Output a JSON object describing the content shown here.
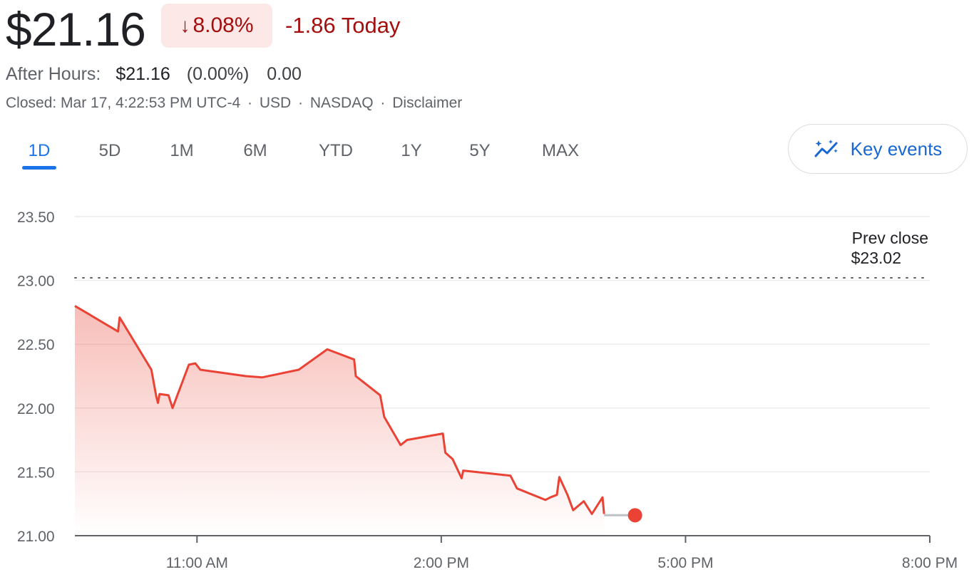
{
  "quote": {
    "price": "$21.16",
    "change_percent": "8.08%",
    "change_today": "-1.86 Today",
    "after_hours_label": "After Hours:",
    "after_hours_price": "$21.16",
    "after_hours_percent": "(0.00%)",
    "after_hours_change": "0.00",
    "status": "Closed: Mar 17, 4:22:53 PM UTC-4",
    "currency": "USD",
    "exchange": "NASDAQ",
    "disclaimer": "Disclaimer",
    "meta_separator": "·"
  },
  "tabs": [
    {
      "label": "1D",
      "active": true
    },
    {
      "label": "5D",
      "active": false
    },
    {
      "label": "1M",
      "active": false
    },
    {
      "label": "6M",
      "active": false
    },
    {
      "label": "YTD",
      "active": false
    },
    {
      "label": "1Y",
      "active": false
    },
    {
      "label": "5Y",
      "active": false
    },
    {
      "label": "MAX",
      "active": false
    }
  ],
  "key_events_label": "Key events",
  "colors": {
    "down": "#a50e0e",
    "line": "#ea4335",
    "accent": "#1a73e8",
    "badge_bg": "#fce8e6"
  },
  "chart_data": {
    "type": "line",
    "xlabel": "",
    "ylabel": "",
    "ylim": [
      21.0,
      23.5
    ],
    "y_ticks": [
      {
        "value": 23.5,
        "label": "23.50"
      },
      {
        "value": 23.0,
        "label": "23.00"
      },
      {
        "value": 22.5,
        "label": "22.50"
      },
      {
        "value": 22.0,
        "label": "22.00"
      },
      {
        "value": 21.5,
        "label": "21.50"
      },
      {
        "value": 21.0,
        "label": "21.00"
      }
    ],
    "x_range_hours": [
      9.5,
      20.0
    ],
    "x_ticks": [
      {
        "hour": 11,
        "label": "11:00 AM"
      },
      {
        "hour": 14,
        "label": "2:00 PM"
      },
      {
        "hour": 17,
        "label": "5:00 PM"
      },
      {
        "hour": 20,
        "label": "8:00 PM"
      }
    ],
    "prev_close": {
      "value": 23.02,
      "label_line1": "Prev close",
      "label_line2": "$23.02"
    },
    "grid": true,
    "series": [
      {
        "points": [
          [
            9.5,
            22.8
          ],
          [
            10.03,
            22.6
          ],
          [
            10.05,
            22.71
          ],
          [
            10.44,
            22.3
          ],
          [
            10.5,
            22.09
          ],
          [
            10.52,
            22.04
          ],
          [
            10.54,
            22.11
          ],
          [
            10.65,
            22.1
          ],
          [
            10.7,
            22.0
          ],
          [
            10.9,
            22.34
          ],
          [
            10.98,
            22.35
          ],
          [
            11.04,
            22.3
          ],
          [
            11.6,
            22.25
          ],
          [
            11.8,
            22.24
          ],
          [
            12.25,
            22.3
          ],
          [
            12.6,
            22.46
          ],
          [
            12.93,
            22.38
          ],
          [
            12.95,
            22.25
          ],
          [
            13.25,
            22.1
          ],
          [
            13.3,
            21.93
          ],
          [
            13.5,
            21.71
          ],
          [
            13.58,
            21.75
          ],
          [
            14.02,
            21.8
          ],
          [
            14.05,
            21.65
          ],
          [
            14.14,
            21.6
          ],
          [
            14.25,
            21.45
          ],
          [
            14.27,
            21.51
          ],
          [
            14.85,
            21.47
          ],
          [
            14.93,
            21.37
          ],
          [
            15.28,
            21.28
          ],
          [
            15.34,
            21.3
          ],
          [
            15.42,
            21.32
          ],
          [
            15.45,
            21.46
          ],
          [
            15.55,
            21.32
          ],
          [
            15.62,
            21.2
          ],
          [
            15.75,
            21.27
          ],
          [
            15.85,
            21.17
          ],
          [
            15.98,
            21.3
          ],
          [
            16.0,
            21.17
          ]
        ]
      },
      {
        "name": "After Hours",
        "points": [
          [
            16.0,
            21.16
          ],
          [
            16.38,
            21.16
          ]
        ]
      }
    ],
    "current_point": [
      16.38,
      21.16
    ]
  }
}
